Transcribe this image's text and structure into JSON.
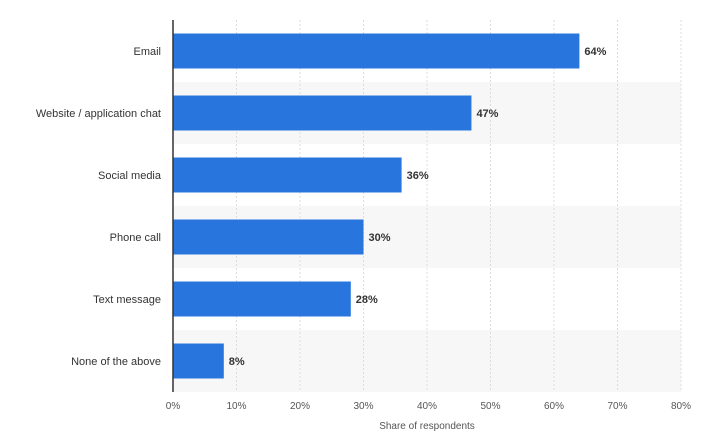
{
  "chart_data": {
    "type": "bar",
    "orientation": "horizontal",
    "title": "",
    "xlabel": "Share of respondents",
    "ylabel": "",
    "categories": [
      "Email",
      "Website / application chat",
      "Social media",
      "Phone call",
      "Text message",
      "None of the above"
    ],
    "values": [
      64,
      47,
      36,
      30,
      28,
      8
    ],
    "value_labels": [
      "64%",
      "47%",
      "36%",
      "30%",
      "28%",
      "8%"
    ],
    "xlim": [
      0,
      80
    ],
    "x_ticks": [
      0,
      10,
      20,
      30,
      40,
      50,
      60,
      70,
      80
    ],
    "x_tick_labels": [
      "0%",
      "10%",
      "20%",
      "30%",
      "40%",
      "50%",
      "60%",
      "70%",
      "80%"
    ],
    "grid": true,
    "legend": "none",
    "colors": {
      "bar": "#2876dd",
      "band": "#f7f7f7",
      "grid": "#dcdcdc",
      "axis": "#333333"
    }
  }
}
